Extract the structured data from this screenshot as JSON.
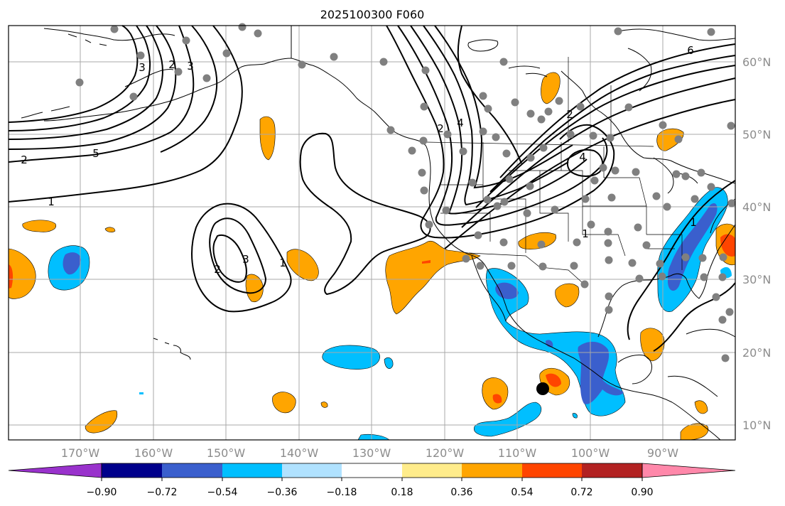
{
  "map": {
    "title": "2025100300 F060",
    "lon_labels": [
      "170°W",
      "160°W",
      "150°W",
      "140°W",
      "130°W",
      "120°W",
      "110°W",
      "100°W",
      "90°W"
    ],
    "lat_labels": [
      "60°N",
      "50°N",
      "40°N",
      "30°N",
      "20°N",
      "10°N"
    ],
    "contour_labels": [
      "2",
      "5",
      "1",
      "3",
      "6",
      "4",
      "2",
      "3",
      "2",
      "1",
      "1",
      "2",
      "3",
      "1",
      "4",
      "2"
    ],
    "marker_color": "#000000",
    "station_color": "#808080"
  },
  "colorbar": {
    "tick_labels": [
      "−0.90",
      "−0.72",
      "−0.54",
      "−0.36",
      "−0.18",
      "0.18",
      "0.36",
      "0.54",
      "0.72",
      "0.90"
    ],
    "colors": [
      "#9932cc",
      "#00008b",
      "#3a5fcd",
      "#00bfff",
      "#b0e2ff",
      "#ffffff",
      "#ffec8b",
      "#ffa500",
      "#ff4500",
      "#b22222",
      "#ff88aa"
    ]
  }
}
